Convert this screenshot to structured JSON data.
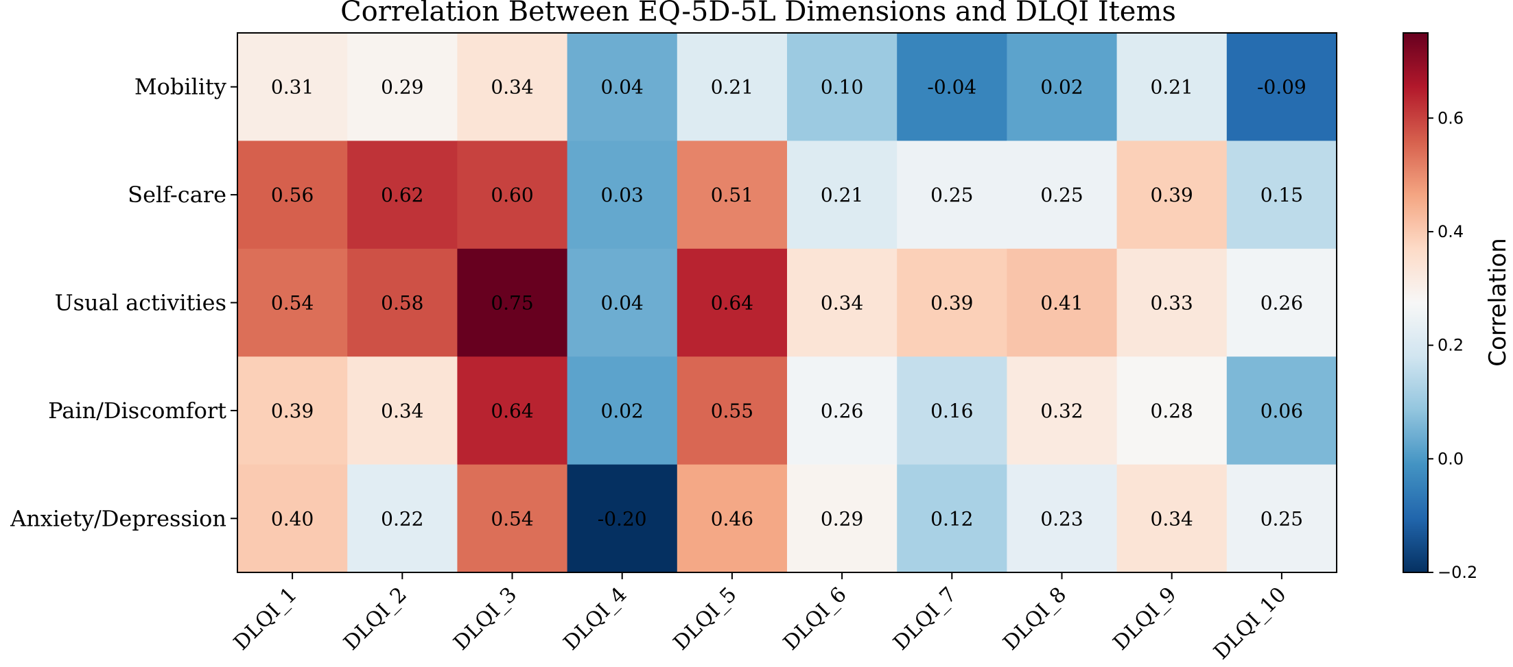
{
  "chart_data": {
    "type": "heatmap",
    "title": "Correlation Between EQ-5D-5L Dimensions and DLQI Items",
    "x_categories": [
      "DLQI_1",
      "DLQI_2",
      "DLQI_3",
      "DLQI_4",
      "DLQI_5",
      "DLQI_6",
      "DLQI_7",
      "DLQI_8",
      "DLQI_9",
      "DLQI_10"
    ],
    "y_categories": [
      "Mobility",
      "Self-care",
      "Usual activities",
      "Pain/Discomfort",
      "Anxiety/Depression"
    ],
    "values": [
      [
        0.31,
        0.29,
        0.34,
        0.04,
        0.21,
        0.1,
        -0.04,
        0.02,
        0.21,
        -0.09
      ],
      [
        0.56,
        0.62,
        0.6,
        0.03,
        0.51,
        0.21,
        0.25,
        0.25,
        0.39,
        0.15
      ],
      [
        0.54,
        0.58,
        0.75,
        0.04,
        0.64,
        0.34,
        0.39,
        0.41,
        0.33,
        0.26
      ],
      [
        0.39,
        0.34,
        0.64,
        0.02,
        0.55,
        0.26,
        0.16,
        0.32,
        0.28,
        0.06
      ],
      [
        0.4,
        0.22,
        0.54,
        -0.2,
        0.46,
        0.29,
        0.12,
        0.23,
        0.34,
        0.25
      ]
    ],
    "value_labels": [
      [
        "0.31",
        "0.29",
        "0.34",
        "0.04",
        "0.21",
        "0.10",
        "-0.04",
        "0.02",
        "0.21",
        "-0.09"
      ],
      [
        "0.56",
        "0.62",
        "0.60",
        "0.03",
        "0.51",
        "0.21",
        "0.25",
        "0.25",
        "0.39",
        "0.15"
      ],
      [
        "0.54",
        "0.58",
        "0.75",
        "0.04",
        "0.64",
        "0.34",
        "0.39",
        "0.41",
        "0.33",
        "0.26"
      ],
      [
        "0.39",
        "0.34",
        "0.64",
        "0.02",
        "0.55",
        "0.26",
        "0.16",
        "0.32",
        "0.28",
        "0.06"
      ],
      [
        "0.40",
        "0.22",
        "0.54",
        "-0.20",
        "0.46",
        "0.29",
        "0.12",
        "0.23",
        "0.34",
        "0.25"
      ]
    ],
    "colorbar": {
      "label": "Correlation",
      "range": [
        -0.2,
        0.75
      ],
      "ticks": [
        -0.2,
        0.0,
        0.2,
        0.4,
        0.6
      ],
      "tick_labels": [
        "−0.2",
        "0.0",
        "0.2",
        "0.4",
        "0.6"
      ],
      "colormap": "RdBu_r",
      "colormap_stops": [
        "#053061",
        "#2166ac",
        "#4393c3",
        "#92c5de",
        "#d1e5f0",
        "#f7f7f7",
        "#fddbc7",
        "#f4a582",
        "#d6604d",
        "#b2182b",
        "#67001f"
      ]
    },
    "xlabel": "",
    "ylabel": ""
  }
}
